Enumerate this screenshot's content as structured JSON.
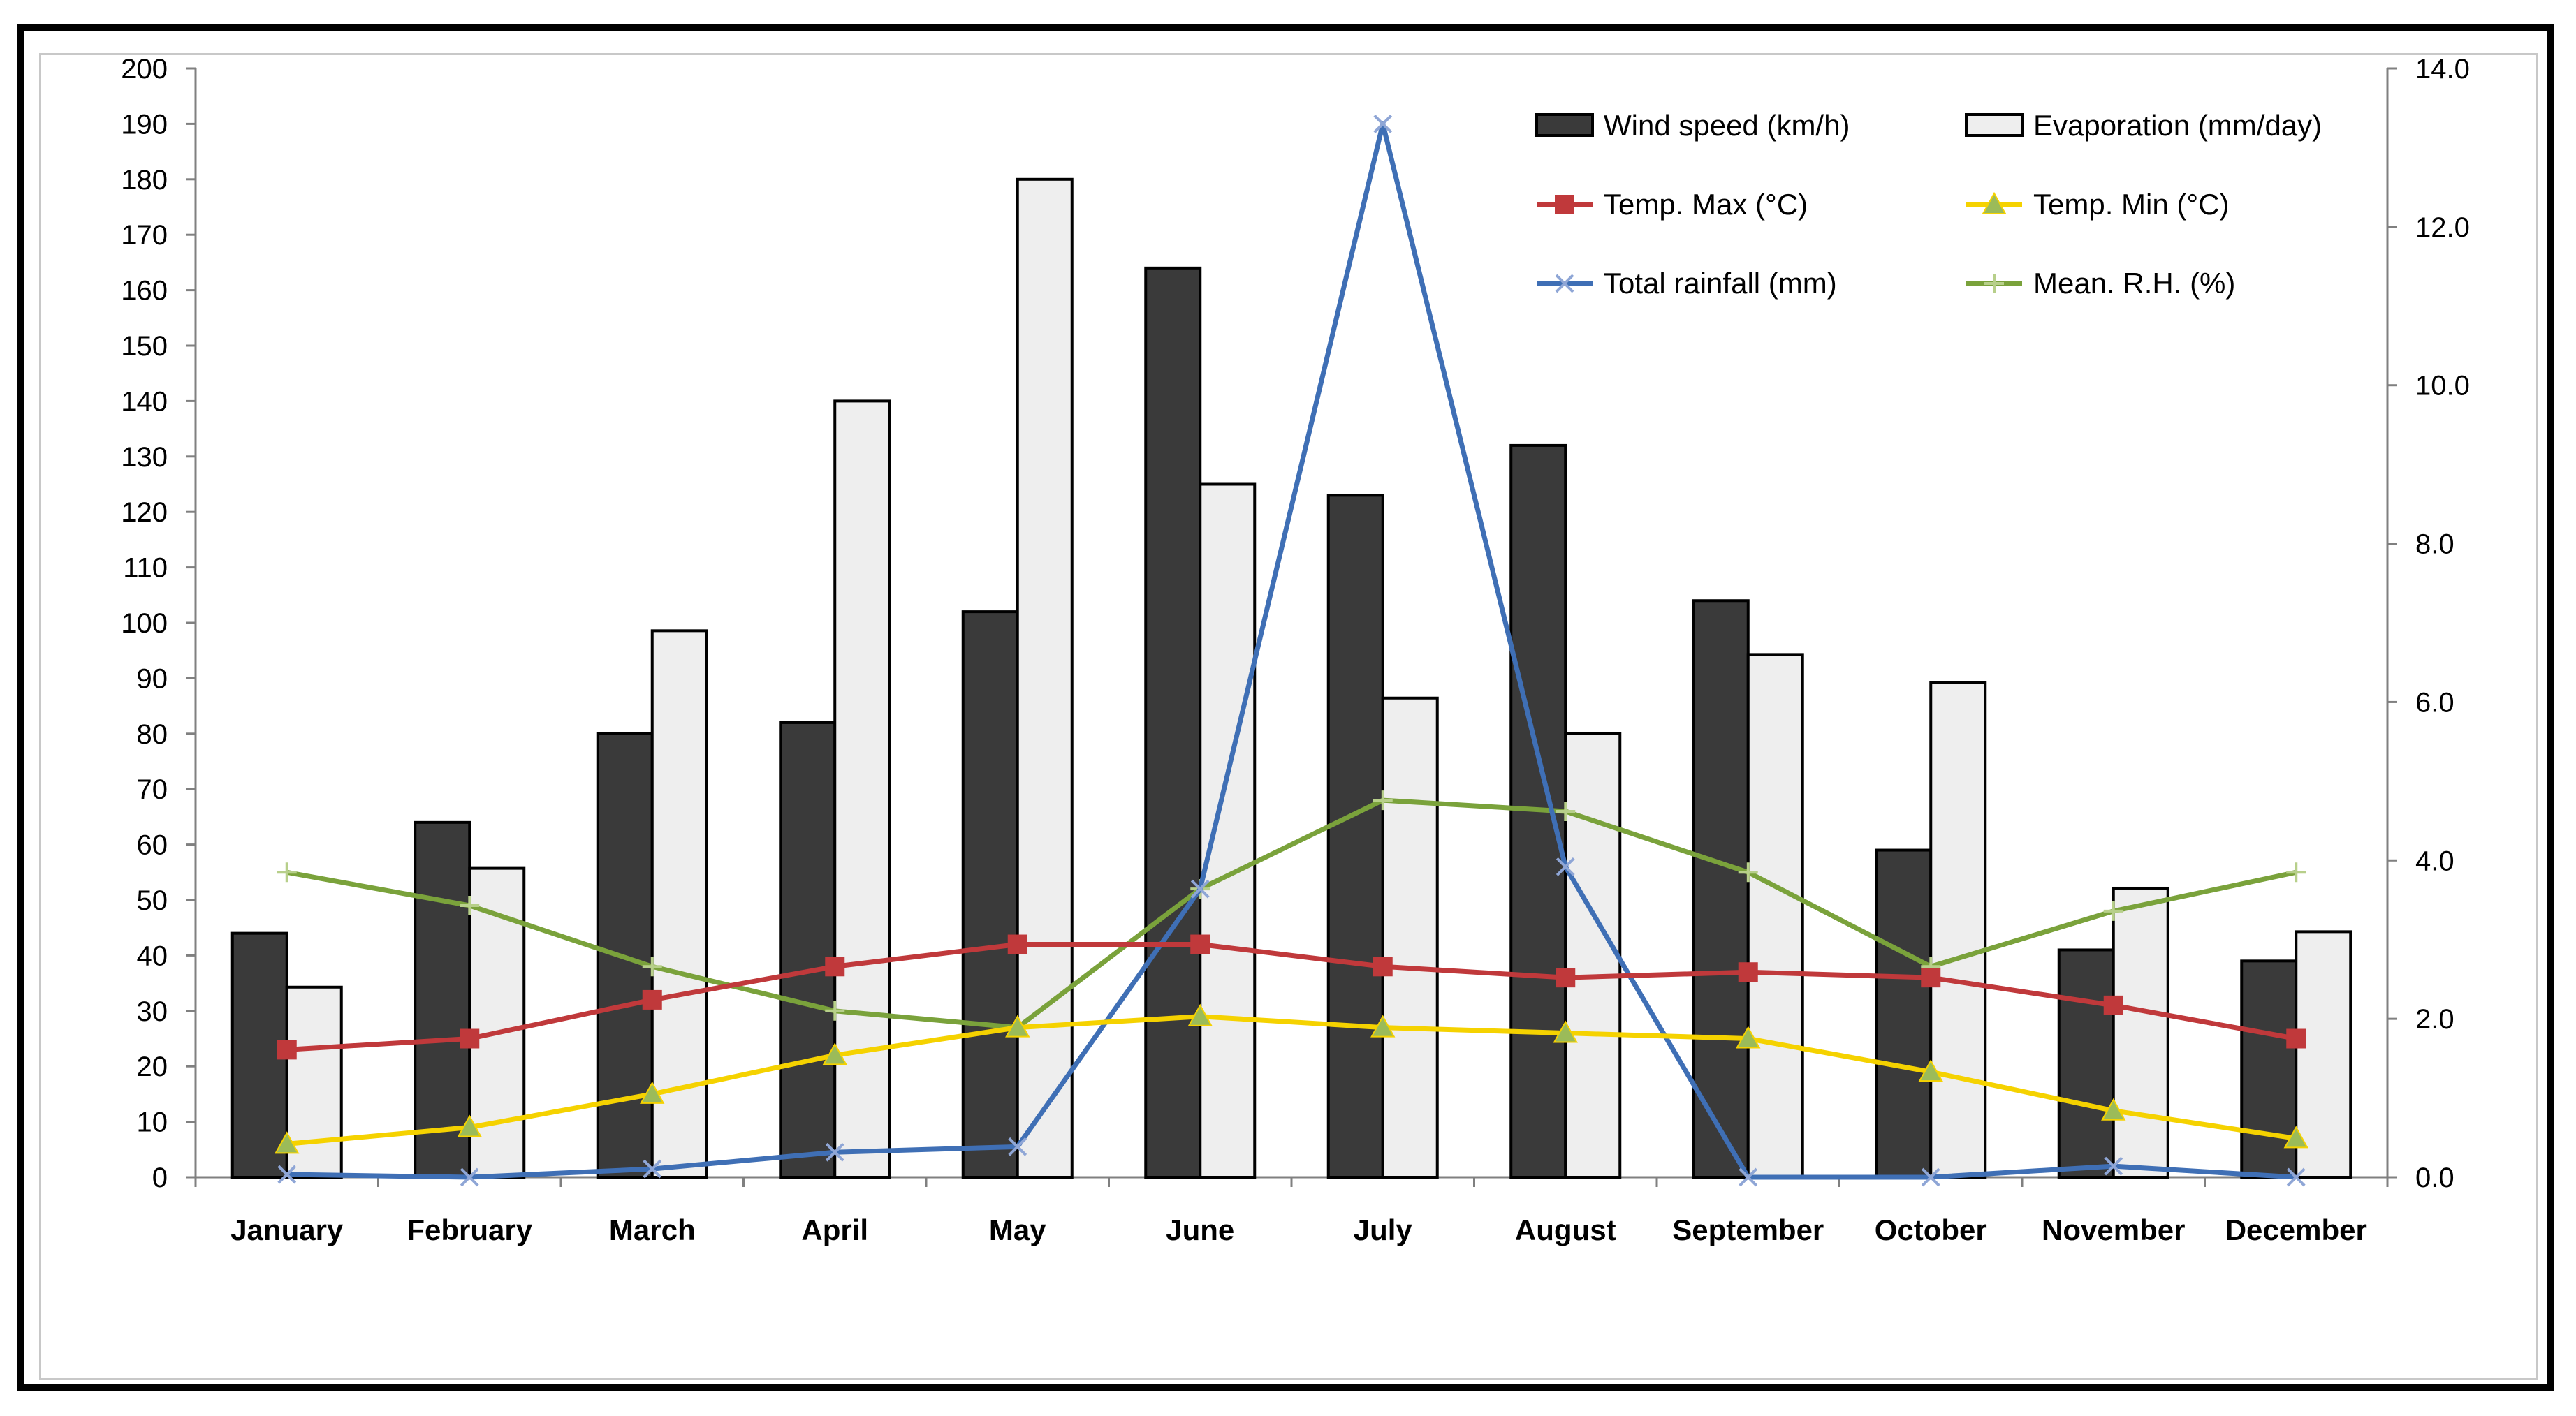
{
  "chart_data": {
    "type": "bar+line",
    "categories": [
      "January",
      "February",
      "March",
      "April",
      "May",
      "June",
      "July",
      "August",
      "September",
      "October",
      "November",
      "December"
    ],
    "left_axis": {
      "ylim": [
        0,
        200
      ],
      "ticks": [
        "0",
        "10",
        "20",
        "30",
        "40",
        "50",
        "60",
        "70",
        "80",
        "90",
        "100",
        "110",
        "120",
        "130",
        "140",
        "150",
        "160",
        "170",
        "180",
        "190",
        "200"
      ]
    },
    "right_axis": {
      "ylim": [
        0,
        14
      ],
      "ticks": [
        "0.0",
        "2.0",
        "4.0",
        "6.0",
        "8.0",
        "10.0",
        "12.0",
        "14.0"
      ]
    },
    "series": [
      {
        "name": "Wind speed (km/h)",
        "kind": "bar",
        "axis": "left",
        "color": "#3a3a3a",
        "values": [
          44,
          64,
          80,
          82,
          102,
          164,
          123,
          132,
          104,
          59,
          41,
          39
        ]
      },
      {
        "name": "Evaporation (mm/day)",
        "kind": "bar",
        "axis": "right",
        "color": "#eeeeee",
        "values": [
          2.4,
          3.9,
          6.9,
          9.8,
          12.6,
          8.75,
          6.05,
          5.6,
          6.6,
          6.25,
          3.65,
          3.1
        ]
      },
      {
        "name": "Temp. Max  (°C)",
        "kind": "line",
        "axis": "left",
        "color": "#c0393b",
        "marker": "square",
        "values": [
          23,
          25,
          32,
          38,
          42,
          42,
          38,
          36,
          37,
          36,
          31,
          25
        ]
      },
      {
        "name": "Temp. Min  (°C)",
        "kind": "line",
        "axis": "left",
        "color": "#f5d200",
        "marker": "triangle",
        "values": [
          6,
          9,
          15,
          22,
          27,
          29,
          27,
          26,
          25,
          19,
          12,
          7
        ]
      },
      {
        "name": "Total rainfall (mm)",
        "kind": "line",
        "axis": "left",
        "color": "#3f6fb5",
        "marker": "x",
        "values": [
          0.5,
          0,
          1.5,
          4.5,
          5.5,
          52,
          190,
          56,
          0,
          0,
          2,
          0
        ]
      },
      {
        "name": "Mean. R.H. (%)",
        "kind": "line",
        "axis": "left",
        "color": "#7aa23b",
        "marker": "plus",
        "values": [
          55,
          49,
          38,
          30,
          27,
          52,
          68,
          66,
          55,
          38,
          48,
          55
        ]
      }
    ]
  }
}
